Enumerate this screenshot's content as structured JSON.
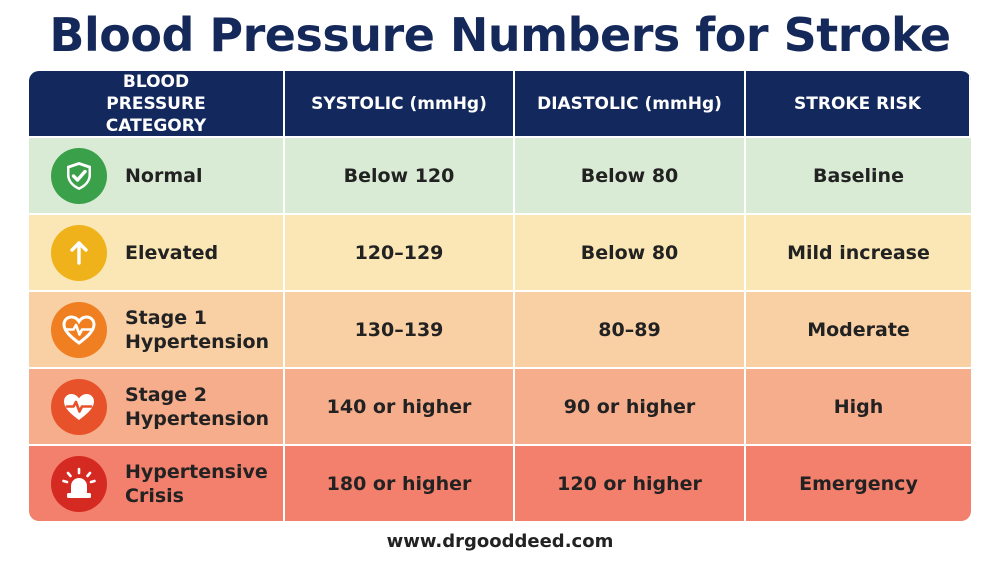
{
  "title": "Blood Pressure Numbers for Stroke",
  "headers": [
    "BLOOD PRESSURE CATEGORY",
    "SYSTOLIC (mmHg)",
    "DIASTOLIC (mmHg)",
    "STROKE RISK"
  ],
  "rows": [
    {
      "category": "Normal",
      "systolic": "Below 120",
      "diastolic": "Below 80",
      "risk": "Baseline",
      "icon": "shield-check-icon",
      "icon_color": "#3aa04a"
    },
    {
      "category": "Elevated",
      "systolic": "120–129",
      "diastolic": "Below 80",
      "risk": "Mild increase",
      "icon": "arrow-up-icon",
      "icon_color": "#f0b21a"
    },
    {
      "category": "Stage 1 Hypertension",
      "systolic": "130–139",
      "diastolic": "80–89",
      "risk": "Moderate",
      "icon": "heart-pulse-icon",
      "icon_color": "#f07f22"
    },
    {
      "category": "Stage 2 Hypertension",
      "systolic": "140 or higher",
      "diastolic": "90 or higher",
      "risk": "High",
      "icon": "heart-pulse-icon",
      "icon_color": "#e8522a"
    },
    {
      "category": "Hypertensive Crisis",
      "systolic": "180 or higher",
      "diastolic": "120 or higher",
      "risk": "Emergency",
      "icon": "alarm-siren-icon",
      "icon_color": "#d42a22"
    }
  ],
  "header_color": "#13285c",
  "footer": "www.drgooddeed.com"
}
